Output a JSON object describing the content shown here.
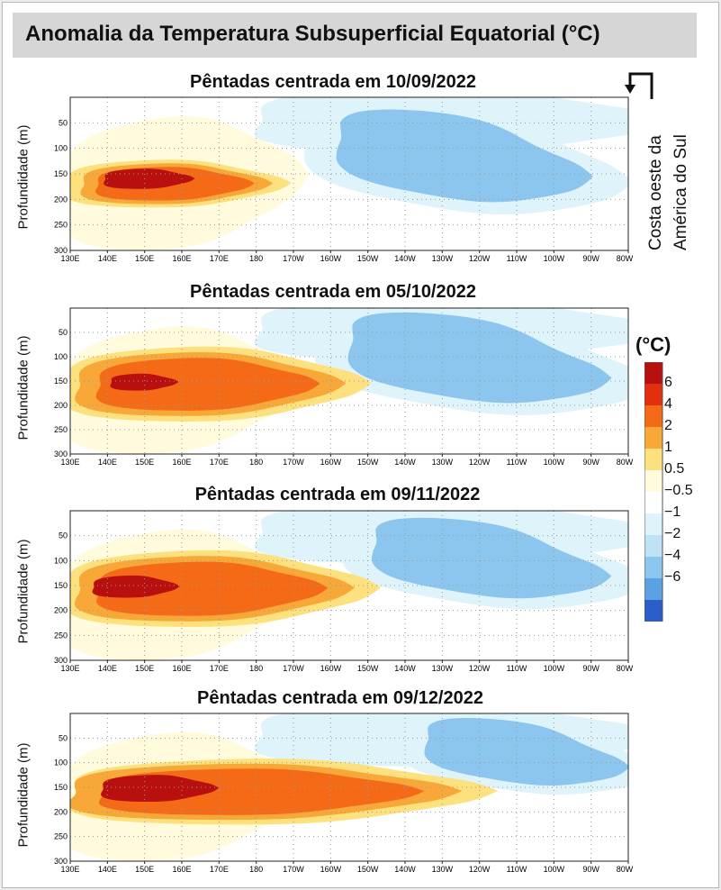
{
  "title": "Anomalia da Temperatura Subsuperficial Equatorial (°C)",
  "ylabel": "Profundidade (m)",
  "coast_line1": "Costa oeste da",
  "coast_line2": "América do Sul",
  "colorbar": {
    "title": "(°C)",
    "labels": [
      "6",
      "4",
      "2",
      "1",
      "0.5",
      "−0.5",
      "−1",
      "−2",
      "−4",
      "−6"
    ],
    "colors": [
      "#b8100e",
      "#e2300f",
      "#f46a16",
      "#f8a838",
      "#fde17e",
      "#fffbdc",
      "#ffffff",
      "#dff3fb",
      "#bde3f5",
      "#8cc6ee",
      "#5aa2e3",
      "#3a7ed8",
      "#2a5ec8"
    ]
  },
  "x_ticks": [
    "130E",
    "140E",
    "150E",
    "160E",
    "170E",
    "180",
    "170W",
    "160W",
    "150W",
    "140W",
    "130W",
    "120W",
    "110W",
    "100W",
    "90W",
    "80W"
  ],
  "y_ticks": [
    "50",
    "100",
    "150",
    "200",
    "250",
    "300"
  ],
  "chart_data": [
    {
      "type": "heatmap",
      "title": "Pêntadas centrada em 10/09/2022",
      "ylabel": "Profundidade (m)",
      "ylim": [
        300,
        0
      ],
      "xlim": [
        "130E",
        "80W"
      ],
      "features": [
        {
          "sign": "warm",
          "level": 4,
          "lon": [
            134,
            178
          ],
          "depth": [
            135,
            205
          ]
        },
        {
          "sign": "warm",
          "level": 6,
          "lon": [
            138,
            162
          ],
          "depth": [
            140,
            180
          ]
        },
        {
          "sign": "cold",
          "level": -4,
          "lon": [
            210,
            258
          ],
          "depth": [
            40,
            150
          ]
        },
        {
          "sign": "cold",
          "level": -2,
          "lon": [
            195,
            270
          ],
          "depth": [
            25,
            210
          ]
        }
      ]
    },
    {
      "type": "heatmap",
      "title": "Pêntadas centrada em 05/10/2022",
      "ylabel": "Profundidade (m)",
      "ylim": [
        300,
        0
      ],
      "xlim": [
        "130E",
        "80W"
      ],
      "features": [
        {
          "sign": "warm",
          "level": 4,
          "lon": [
            133,
            195
          ],
          "depth": [
            100,
            215
          ]
        },
        {
          "sign": "warm",
          "level": 6,
          "lon": [
            140,
            158
          ],
          "depth": [
            135,
            170
          ]
        },
        {
          "sign": "cold",
          "level": -4,
          "lon": [
            212,
            262
          ],
          "depth": [
            30,
            145
          ]
        },
        {
          "sign": "cold",
          "level": -2,
          "lon": [
            198,
            275
          ],
          "depth": [
            10,
            200
          ]
        }
      ]
    },
    {
      "type": "heatmap",
      "title": "Pêntadas centrada em 09/11/2022",
      "ylabel": "Profundidade (m)",
      "ylim": [
        300,
        0
      ],
      "xlim": [
        "130E",
        "80W"
      ],
      "features": [
        {
          "sign": "warm",
          "level": 4,
          "lon": [
            133,
            197
          ],
          "depth": [
            100,
            215
          ]
        },
        {
          "sign": "warm",
          "level": 6,
          "lon": [
            135,
            158
          ],
          "depth": [
            130,
            175
          ]
        },
        {
          "sign": "cold",
          "level": -4,
          "lon": [
            218,
            258
          ],
          "depth": [
            40,
            120
          ]
        },
        {
          "sign": "cold",
          "level": -2,
          "lon": [
            205,
            275
          ],
          "depth": [
            15,
            180
          ]
        }
      ]
    },
    {
      "type": "heatmap",
      "title": "Pêntadas centrada em 09/12/2022",
      "ylabel": "Profundidade (m)",
      "ylim": [
        300,
        0
      ],
      "xlim": [
        "130E",
        "80W"
      ],
      "features": [
        {
          "sign": "warm",
          "level": 4,
          "lon": [
            132,
            222
          ],
          "depth": [
            110,
            210
          ]
        },
        {
          "sign": "warm",
          "level": 6,
          "lon": [
            137,
            168
          ],
          "depth": [
            125,
            180
          ]
        },
        {
          "sign": "cold",
          "level": -4,
          "lon": [
            245,
            268
          ],
          "depth": [
            25,
            65
          ]
        },
        {
          "sign": "cold",
          "level": -2,
          "lon": [
            220,
            280
          ],
          "depth": [
            10,
            150
          ]
        }
      ]
    }
  ]
}
